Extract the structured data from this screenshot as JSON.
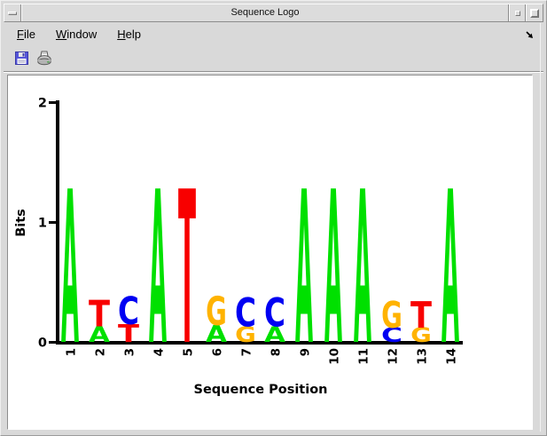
{
  "window": {
    "title": "Sequence Logo"
  },
  "menubar": {
    "items": [
      {
        "label": "File"
      },
      {
        "label": "Window"
      },
      {
        "label": "Help"
      }
    ]
  },
  "toolbar": {
    "buttons": [
      {
        "name": "save"
      },
      {
        "name": "print"
      }
    ]
  },
  "chart_data": {
    "type": "sequence_logo",
    "xlabel": "Sequence Position",
    "ylabel": "Bits",
    "ylim": [
      0,
      2
    ],
    "yticks": [
      0,
      1,
      2
    ],
    "x_positions": [
      1,
      2,
      3,
      4,
      5,
      6,
      7,
      8,
      9,
      10,
      11,
      12,
      13,
      14
    ],
    "colors": {
      "A": "#00E000",
      "C": "#0000F2",
      "G": "#FFB300",
      "T": "#F80000"
    },
    "stacks": [
      [
        {
          "base": "A",
          "bits": 1.28
        }
      ],
      [
        {
          "base": "A",
          "bits": 0.13
        },
        {
          "base": "T",
          "bits": 0.22
        }
      ],
      [
        {
          "base": "T",
          "bits": 0.15
        },
        {
          "base": "C",
          "bits": 0.23
        }
      ],
      [
        {
          "base": "A",
          "bits": 1.28
        }
      ],
      [
        {
          "base": "T",
          "bits": 1.28
        }
      ],
      [
        {
          "base": "A",
          "bits": 0.14
        },
        {
          "base": "G",
          "bits": 0.24
        }
      ],
      [
        {
          "base": "G",
          "bits": 0.13
        },
        {
          "base": "C",
          "bits": 0.24
        }
      ],
      [
        {
          "base": "A",
          "bits": 0.13
        },
        {
          "base": "C",
          "bits": 0.24
        }
      ],
      [
        {
          "base": "A",
          "bits": 1.28
        }
      ],
      [
        {
          "base": "A",
          "bits": 1.28
        }
      ],
      [
        {
          "base": "A",
          "bits": 1.28
        }
      ],
      [
        {
          "base": "C",
          "bits": 0.12
        },
        {
          "base": "G",
          "bits": 0.22
        }
      ],
      [
        {
          "base": "G",
          "bits": 0.12
        },
        {
          "base": "T",
          "bits": 0.22
        }
      ],
      [
        {
          "base": "A",
          "bits": 1.28
        }
      ]
    ]
  }
}
